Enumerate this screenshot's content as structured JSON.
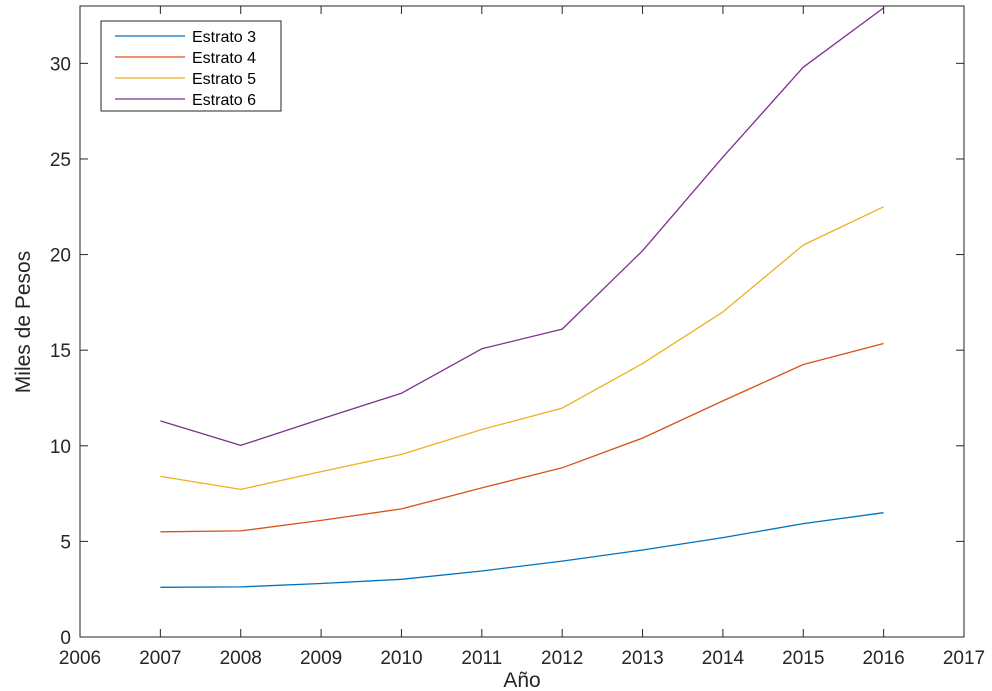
{
  "chart_data": {
    "type": "line",
    "title": "",
    "xlabel": "Año",
    "ylabel": "Miles de Pesos",
    "xlim": [
      2006,
      2017
    ],
    "ylim": [
      0,
      33
    ],
    "xticks": [
      2006,
      2007,
      2008,
      2009,
      2010,
      2011,
      2012,
      2013,
      2014,
      2015,
      2016,
      2017
    ],
    "yticks": [
      0,
      5,
      10,
      15,
      20,
      25,
      30
    ],
    "grid": false,
    "legend_position": "top-left",
    "x": [
      2007,
      2008,
      2009,
      2010,
      2011,
      2012,
      2013,
      2014,
      2015,
      2016
    ],
    "series": [
      {
        "name": "Estrato 3",
        "color": "#0072bd",
        "values": [
          2.6,
          2.62,
          2.8,
          3.02,
          3.45,
          3.97,
          4.55,
          5.2,
          5.93,
          6.5
        ]
      },
      {
        "name": "Estrato 4",
        "color": "#d95319",
        "values": [
          5.5,
          5.55,
          6.1,
          6.7,
          7.8,
          8.85,
          10.4,
          12.35,
          14.25,
          15.35
        ]
      },
      {
        "name": "Estrato 5",
        "color": "#edb120",
        "values": [
          8.4,
          7.72,
          8.65,
          9.55,
          10.85,
          11.97,
          14.3,
          17.0,
          20.5,
          22.5
        ]
      },
      {
        "name": "Estrato 6",
        "color": "#7e2f8e",
        "values": [
          11.3,
          10.02,
          11.4,
          12.75,
          15.07,
          16.1,
          20.2,
          25.1,
          29.8,
          32.9
        ]
      }
    ]
  }
}
